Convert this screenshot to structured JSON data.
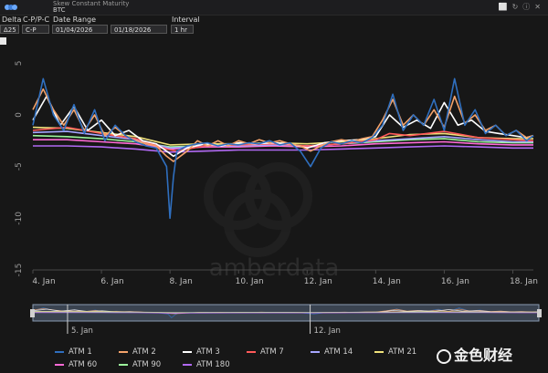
{
  "app": {
    "title": "Skew Constant Maturity",
    "subtitle": "BTC",
    "window_icons": [
      "expand-icon",
      "refresh-icon",
      "info-icon",
      "close-icon"
    ]
  },
  "controls": {
    "delta_label": "Delta",
    "delta_value": "Δ25",
    "type_label": "C-P/P-C",
    "type_value": "C-P",
    "date_range_label": "Date Range",
    "date_from": "01/04/2026",
    "date_to": "01/18/2026",
    "interval_label": "Interval",
    "interval_value": "1 hr"
  },
  "watermark": "金色财经",
  "chart_data": {
    "type": "line",
    "x_ticks": [
      "4. Jan",
      "6. Jan",
      "8. Jan",
      "10. Jan",
      "12. Jan",
      "14. Jan",
      "16. Jan",
      "18. Jan"
    ],
    "y_ticks": [
      "5",
      "0",
      "-5",
      "-10",
      "-15"
    ],
    "ylim": [
      -15,
      6
    ],
    "xlim": [
      0,
      14.6
    ],
    "navigator_ticks": [
      "5. Jan",
      "12. Jan"
    ],
    "grid": false,
    "legend_position": "bottom",
    "series": [
      {
        "name": "ATM 1",
        "color": "#2f6fbf",
        "x": [
          0,
          0.3,
          0.6,
          0.9,
          1.2,
          1.5,
          1.8,
          2.1,
          2.4,
          2.7,
          3,
          3.3,
          3.6,
          3.9,
          4.0,
          4.1,
          4.2,
          4.5,
          4.8,
          5.1,
          5.4,
          5.7,
          6,
          6.3,
          6.6,
          6.9,
          7.2,
          7.5,
          7.8,
          8.1,
          8.4,
          8.7,
          9,
          9.3,
          9.6,
          9.9,
          10.2,
          10.5,
          10.8,
          11.1,
          11.4,
          11.7,
          12,
          12.3,
          12.6,
          12.9,
          13.2,
          13.5,
          13.8,
          14.1,
          14.4,
          14.6
        ],
        "values": [
          -1,
          3.5,
          0,
          -1.5,
          1,
          -1.8,
          0.5,
          -2.5,
          -1,
          -2,
          -2.6,
          -3,
          -3.2,
          -5,
          -10,
          -6,
          -3.5,
          -3,
          -2.8,
          -2.7,
          -3,
          -2.8,
          -2.9,
          -2.7,
          -2.8,
          -2.5,
          -2.9,
          -2.7,
          -3.5,
          -5,
          -3.2,
          -2.6,
          -2.8,
          -2.5,
          -2.7,
          -2.2,
          -1,
          2,
          -1.5,
          0,
          -1,
          1.5,
          -1.5,
          3.5,
          -1,
          0.5,
          -1.8,
          -1,
          -2,
          -1.5,
          -2.5,
          -2
        ]
      },
      {
        "name": "ATM 2",
        "color": "#f4a36b",
        "x": [
          0,
          0.3,
          0.6,
          0.9,
          1.2,
          1.5,
          1.8,
          2.1,
          2.4,
          2.7,
          3,
          3.3,
          3.6,
          3.9,
          4.1,
          4.5,
          4.8,
          5.1,
          5.4,
          5.7,
          6,
          6.3,
          6.6,
          6.9,
          7.2,
          7.5,
          7.8,
          8.1,
          8.4,
          8.7,
          9,
          9.3,
          9.6,
          9.9,
          10.2,
          10.5,
          10.8,
          11.1,
          11.4,
          11.7,
          12,
          12.3,
          12.6,
          12.9,
          13.2,
          13.5,
          13.8,
          14.1,
          14.4,
          14.6
        ],
        "values": [
          0.5,
          2.5,
          0.5,
          -1,
          0.5,
          -1.5,
          0,
          -2,
          -1.2,
          -2,
          -2.5,
          -2.8,
          -3,
          -4,
          -4.5,
          -3.5,
          -2.5,
          -3,
          -2.5,
          -3,
          -2.5,
          -2.8,
          -2.4,
          -2.7,
          -2.5,
          -2.8,
          -3,
          -3.5,
          -3,
          -2.6,
          -2.4,
          -2.6,
          -2.3,
          -2.1,
          -0.5,
          1.5,
          -1,
          0,
          -1,
          0.5,
          -1.2,
          1.8,
          -0.8,
          0,
          -1.5,
          -1,
          -2,
          -1.5,
          -2.2,
          -2
        ]
      },
      {
        "name": "ATM 3",
        "color": "#ffffff",
        "x": [
          0,
          0.4,
          0.8,
          1.2,
          1.6,
          2.0,
          2.4,
          2.8,
          3.2,
          3.6,
          3.9,
          4.1,
          4.5,
          5,
          5.5,
          6,
          6.5,
          7,
          7.5,
          8,
          8.5,
          9,
          9.5,
          10,
          10.4,
          10.8,
          11.2,
          11.6,
          12,
          12.4,
          12.8,
          13.2,
          13.6,
          14,
          14.4,
          14.6
        ],
        "values": [
          -0.5,
          1.8,
          -1,
          0.8,
          -1.5,
          -0.5,
          -2,
          -1.5,
          -2.5,
          -2.8,
          -3.5,
          -4,
          -3.2,
          -2.8,
          -3,
          -2.7,
          -2.8,
          -2.7,
          -2.8,
          -3.2,
          -2.7,
          -2.5,
          -2.4,
          -2.1,
          0,
          -1.2,
          -0.5,
          -1.3,
          1.2,
          -1,
          -0.5,
          -1.6,
          -1.8,
          -2,
          -2.2,
          -2
        ]
      },
      {
        "name": "ATM 7",
        "color": "#ff5a5a",
        "x": [
          0,
          1,
          2,
          3,
          3.9,
          4.2,
          5,
          6,
          7,
          8,
          9,
          10,
          10.4,
          11,
          12,
          13,
          14,
          14.6
        ],
        "values": [
          -1.5,
          -1.2,
          -1.8,
          -2.3,
          -3.3,
          -3.5,
          -3,
          -2.9,
          -2.8,
          -3,
          -2.8,
          -2.4,
          -1.8,
          -2,
          -1.6,
          -2.2,
          -2.4,
          -2.5
        ]
      },
      {
        "name": "ATM 14",
        "color": "#a6a6ff",
        "x": [
          0,
          1,
          2,
          3,
          4,
          5,
          6,
          7,
          8,
          9,
          10,
          11,
          12,
          13,
          14,
          14.6
        ],
        "values": [
          -1.7,
          -1.6,
          -2,
          -2.4,
          -3.2,
          -3,
          -3,
          -2.9,
          -3,
          -2.8,
          -2.5,
          -2.3,
          -2.1,
          -2.4,
          -2.6,
          -2.6
        ]
      },
      {
        "name": "ATM 21",
        "color": "#f0e27a",
        "x": [
          0,
          1,
          2,
          3,
          4,
          5,
          6,
          7,
          8,
          9,
          10,
          11,
          12,
          13,
          14,
          14.6
        ],
        "values": [
          -1.2,
          -1.3,
          -1.7,
          -2.1,
          -2.9,
          -2.8,
          -2.8,
          -2.7,
          -2.8,
          -2.6,
          -2.3,
          -1.9,
          -1.8,
          -2.2,
          -2.3,
          -2.3
        ]
      },
      {
        "name": "ATM 60",
        "color": "#ff6ad5",
        "x": [
          0,
          1,
          2,
          3,
          4,
          5,
          6,
          7,
          8,
          9,
          10,
          11,
          12,
          13,
          14,
          14.6
        ],
        "values": [
          -2.4,
          -2.4,
          -2.6,
          -2.8,
          -3.3,
          -3.1,
          -3.1,
          -3,
          -3.1,
          -3,
          -2.8,
          -2.7,
          -2.6,
          -2.8,
          -2.9,
          -2.9
        ]
      },
      {
        "name": "ATM 90",
        "color": "#9cf59c",
        "x": [
          0,
          1,
          2,
          3,
          4,
          5,
          6,
          7,
          8,
          9,
          10,
          11,
          12,
          13,
          14,
          14.6
        ],
        "values": [
          -2,
          -2.1,
          -2.3,
          -2.6,
          -3.1,
          -3,
          -2.9,
          -2.9,
          -3,
          -2.8,
          -2.6,
          -2.4,
          -2.3,
          -2.6,
          -2.7,
          -2.7
        ]
      },
      {
        "name": "ATM 180",
        "color": "#b069f2",
        "x": [
          0,
          1,
          2,
          3,
          4,
          5,
          6,
          7,
          8,
          9,
          10,
          11,
          12,
          13,
          14,
          14.6
        ],
        "values": [
          -3,
          -3,
          -3.1,
          -3.3,
          -3.6,
          -3.5,
          -3.4,
          -3.4,
          -3.4,
          -3.3,
          -3.2,
          -3.1,
          -3,
          -3.1,
          -3.2,
          -3.2
        ]
      }
    ]
  }
}
